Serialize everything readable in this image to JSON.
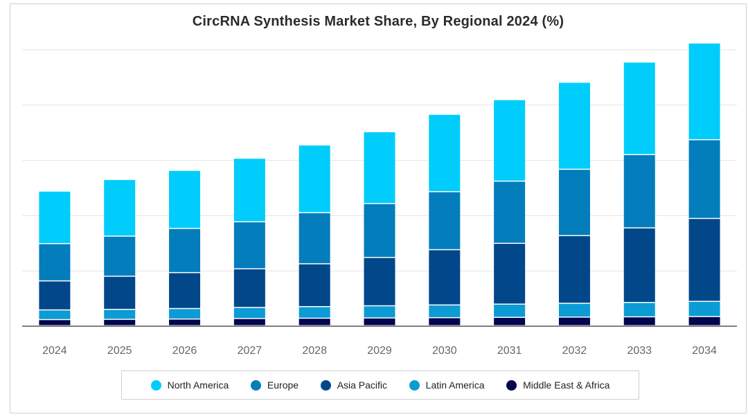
{
  "chart_data": {
    "type": "bar",
    "stacked": true,
    "title": "CircRNA Synthesis Market Share, By Regional 2024 (%)",
    "xlabel": "",
    "ylabel": "",
    "ylim": [
      0,
      100
    ],
    "categories": [
      "2024",
      "2025",
      "2026",
      "2027",
      "2028",
      "2029",
      "2030",
      "2031",
      "2032",
      "2033",
      "2034"
    ],
    "series": [
      {
        "name": "Middle East & Africa",
        "color": "#03054f",
        "values": [
          2.2,
          2.3,
          2.4,
          2.6,
          2.7,
          2.8,
          2.9,
          3.0,
          3.1,
          3.2,
          3.3
        ]
      },
      {
        "name": "Latin America",
        "color": "#0c9bd4",
        "values": [
          3.5,
          3.6,
          3.8,
          4.0,
          4.2,
          4.4,
          4.6,
          4.8,
          5.0,
          5.2,
          5.5
        ]
      },
      {
        "name": "Asia Pacific",
        "color": "#01478a",
        "values": [
          10.5,
          12.0,
          13.0,
          14.0,
          15.5,
          17.5,
          20.0,
          22.0,
          24.5,
          27.0,
          30.0
        ]
      },
      {
        "name": "Europe",
        "color": "#037dbc",
        "values": [
          13.5,
          14.5,
          16.0,
          17.0,
          18.5,
          19.5,
          21.0,
          22.5,
          24.0,
          26.5,
          28.5
        ]
      },
      {
        "name": "North America",
        "color": "#00cdfb",
        "values": [
          19.0,
          20.5,
          21.0,
          23.0,
          24.5,
          26.0,
          28.0,
          29.5,
          31.5,
          33.5,
          35.0
        ]
      }
    ],
    "grid": true,
    "legend_position": "bottom"
  },
  "legend": [
    {
      "name": "North America",
      "color": "#00cdfb"
    },
    {
      "name": "Europe",
      "color": "#037dbc"
    },
    {
      "name": "Asia Pacific",
      "color": "#01478a"
    },
    {
      "name": "Latin America",
      "color": "#0c9bd4"
    },
    {
      "name": "Middle East & Africa",
      "color": "#03054f"
    }
  ]
}
